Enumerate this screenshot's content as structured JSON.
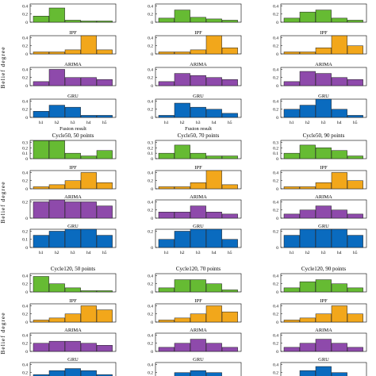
{
  "figure": {
    "ylabel": "Belief degree",
    "xlabel": "Fusion result",
    "categories": [
      "h1",
      "h2",
      "h3",
      "h4",
      "h5"
    ],
    "panel_titles": {
      "row2": [
        "Cycle50, 50 points",
        "Cycle50, 70 points",
        "Cycle50, 90 points"
      ],
      "row3": [
        "Cycle120, 50 points",
        "Cycle120, 70 points",
        "Cycle120, 90 points"
      ]
    },
    "colors": {
      "fusion": "#66bb33",
      "IPF": "#f2a71b",
      "ARIMA": "#8e4aab",
      "GRU": "#0a6bbf"
    }
  },
  "chart_data": [
    {
      "type": "bar",
      "title": "",
      "subplots": [
        {
          "name": "",
          "values": [
            0.15,
            0.35,
            0.05,
            0.03,
            0.03
          ],
          "yticks": [
            "0",
            "0.2",
            "0.4"
          ]
        },
        {
          "name": "IPF",
          "values": [
            0.05,
            0.05,
            0.1,
            0.45,
            0.1
          ],
          "yticks": [
            "0",
            "0.2",
            "0.4"
          ]
        },
        {
          "name": "ARIMA",
          "values": [
            0.1,
            0.4,
            0.2,
            0.2,
            0.15
          ],
          "yticks": [
            "0",
            "0.2",
            "0.4"
          ]
        },
        {
          "name": "GRU",
          "values": [
            0.15,
            0.3,
            0.25,
            0.05,
            0.05
          ],
          "yticks": [
            "0",
            "0.2",
            "0.4"
          ]
        }
      ],
      "xticks": [
        "h1",
        "h2",
        "h3",
        "h4",
        "h5"
      ],
      "xlabel": "Fusion result"
    },
    {
      "type": "bar",
      "title": "",
      "subplots": [
        {
          "name": "",
          "values": [
            0.1,
            0.3,
            0.12,
            0.08,
            0.05
          ],
          "yticks": [
            "0",
            "0.2",
            "0.4"
          ]
        },
        {
          "name": "IPF",
          "values": [
            0.05,
            0.05,
            0.1,
            0.45,
            0.15
          ],
          "yticks": [
            "0",
            "0.2",
            "0.4"
          ]
        },
        {
          "name": "ARIMA",
          "values": [
            0.1,
            0.3,
            0.25,
            0.2,
            0.15
          ],
          "yticks": [
            "0",
            "0.2",
            "0.4"
          ]
        },
        {
          "name": "GRU",
          "values": [
            0.05,
            0.35,
            0.25,
            0.2,
            0.1
          ],
          "yticks": [
            "0",
            "0.2",
            "0.4"
          ]
        }
      ],
      "xticks": [
        "h1",
        "h2",
        "h3",
        "h4",
        "h5"
      ],
      "xlabel": "Fusion result"
    },
    {
      "type": "bar",
      "title": "",
      "subplots": [
        {
          "name": "",
          "values": [
            0.1,
            0.25,
            0.3,
            0.1,
            0.05
          ],
          "yticks": [
            "0",
            "0.2",
            "0.4"
          ]
        },
        {
          "name": "IPF",
          "values": [
            0.05,
            0.05,
            0.15,
            0.45,
            0.2
          ],
          "yticks": [
            "0",
            "0.2",
            "0.4"
          ]
        },
        {
          "name": "ARIMA",
          "values": [
            0.1,
            0.35,
            0.3,
            0.2,
            0.15
          ],
          "yticks": [
            "0",
            "0.2",
            "0.4"
          ]
        },
        {
          "name": "GRU",
          "values": [
            0.2,
            0.3,
            0.45,
            0.2,
            0.05
          ],
          "yticks": [
            "0",
            "0.2",
            "0.4"
          ]
        }
      ],
      "xticks": [
        "h1",
        "h2",
        "h3",
        "h4",
        "h5"
      ],
      "xlabel": ""
    },
    {
      "type": "bar",
      "title": "Cycle50, 50 points",
      "subplots": [
        {
          "name": "",
          "values": [
            0.33,
            0.33,
            0.1,
            0.05,
            0.15
          ],
          "yticks": [
            "0",
            "0.1",
            "0.2",
            "0.3"
          ]
        },
        {
          "name": "IPF",
          "values": [
            0.05,
            0.1,
            0.2,
            0.4,
            0.15
          ],
          "yticks": [
            "0",
            "0.2",
            "0.4"
          ]
        },
        {
          "name": "ARIMA",
          "values": [
            0.2,
            0.25,
            0.2,
            0.2,
            0.15
          ],
          "yticks": [
            "0",
            "0.2"
          ]
        },
        {
          "name": "GRU",
          "values": [
            0.15,
            0.2,
            0.25,
            0.25,
            0.15
          ],
          "yticks": [
            "0",
            "0.1",
            "0.2"
          ]
        }
      ],
      "xticks": [
        "h1",
        "h2",
        "h3",
        "h4",
        "h5"
      ],
      "xlabel": ""
    },
    {
      "type": "bar",
      "title": "Cycle50, 70 points",
      "subplots": [
        {
          "name": "",
          "values": [
            0.1,
            0.25,
            0.1,
            0.05,
            0.05
          ],
          "yticks": [
            "0",
            "0.1",
            "0.2",
            "0.3"
          ]
        },
        {
          "name": "IPF",
          "values": [
            0.05,
            0.05,
            0.15,
            0.45,
            0.1
          ],
          "yticks": [
            "0",
            "0.2",
            "0.4"
          ]
        },
        {
          "name": "ARIMA",
          "values": [
            0.15,
            0.15,
            0.3,
            0.15,
            0.1
          ],
          "yticks": [
            "0",
            "0.2",
            "0.4"
          ]
        },
        {
          "name": "GRU",
          "values": [
            0.1,
            0.2,
            0.25,
            0.25,
            0.1
          ],
          "yticks": [
            "0",
            "0.2"
          ]
        }
      ],
      "xticks": [
        "h1",
        "h2",
        "h3",
        "h4",
        "h5"
      ],
      "xlabel": ""
    },
    {
      "type": "bar",
      "title": "Cycle50, 90 points",
      "subplots": [
        {
          "name": "",
          "values": [
            0.1,
            0.25,
            0.2,
            0.15,
            0.05
          ],
          "yticks": [
            "0",
            "0.1",
            "0.2",
            "0.3"
          ]
        },
        {
          "name": "IPF",
          "values": [
            0.05,
            0.05,
            0.15,
            0.4,
            0.2
          ],
          "yticks": [
            "0",
            "0.2",
            "0.4"
          ]
        },
        {
          "name": "ARIMA",
          "values": [
            0.1,
            0.2,
            0.3,
            0.2,
            0.1
          ],
          "yticks": [
            "0",
            "0.2",
            "0.4"
          ]
        },
        {
          "name": "GRU",
          "values": [
            0.15,
            0.25,
            0.25,
            0.25,
            0.15
          ],
          "yticks": [
            "0",
            "0.2"
          ]
        }
      ],
      "xticks": [
        "h1",
        "h2",
        "h3",
        "h4",
        "h5"
      ],
      "xlabel": ""
    },
    {
      "type": "bar",
      "title": "Cycle120, 50 points",
      "subplots": [
        {
          "name": "",
          "values": [
            0.38,
            0.2,
            0.1,
            0.03,
            0.03
          ],
          "yticks": [
            "0",
            "0.2",
            "0.4"
          ]
        },
        {
          "name": "IPF",
          "values": [
            0.05,
            0.1,
            0.2,
            0.4,
            0.3
          ],
          "yticks": [
            "0",
            "0.2",
            "0.4"
          ]
        },
        {
          "name": "ARIMA",
          "values": [
            0.2,
            0.25,
            0.25,
            0.2,
            0.15
          ],
          "yticks": [
            "0",
            "0.2",
            "0.4"
          ]
        },
        {
          "name": "GRU",
          "values": [
            0.15,
            0.25,
            0.3,
            0.25,
            0.15
          ],
          "yticks": [
            "0",
            "0.2",
            "0.4"
          ]
        }
      ],
      "xticks": [],
      "xlabel": ""
    },
    {
      "type": "bar",
      "title": "Cycle120, 70 points",
      "subplots": [
        {
          "name": "",
          "values": [
            0.1,
            0.3,
            0.3,
            0.2,
            0.05
          ],
          "yticks": [
            "0",
            "0.2",
            "0.4"
          ]
        },
        {
          "name": "IPF",
          "values": [
            0.05,
            0.1,
            0.2,
            0.4,
            0.25
          ],
          "yticks": [
            "0",
            "0.2",
            "0.4"
          ]
        },
        {
          "name": "ARIMA",
          "values": [
            0.1,
            0.2,
            0.3,
            0.2,
            0.1
          ],
          "yticks": [
            "0",
            "0.2",
            "0.4"
          ]
        },
        {
          "name": "GRU",
          "values": [
            0.1,
            0.2,
            0.25,
            0.2,
            0.1
          ],
          "yticks": [
            "0",
            "0.2",
            "0.4"
          ]
        }
      ],
      "xticks": [],
      "xlabel": ""
    },
    {
      "type": "bar",
      "title": "Cycle120, 90 points",
      "subplots": [
        {
          "name": "",
          "values": [
            0.1,
            0.25,
            0.3,
            0.2,
            0.1
          ],
          "yticks": [
            "0",
            "0.2",
            "0.4"
          ]
        },
        {
          "name": "IPF",
          "values": [
            0.05,
            0.1,
            0.2,
            0.4,
            0.2
          ],
          "yticks": [
            "0",
            "0.2",
            "0.4"
          ]
        },
        {
          "name": "ARIMA",
          "values": [
            0.1,
            0.2,
            0.3,
            0.2,
            0.1
          ],
          "yticks": [
            "0",
            "0.2",
            "0.4"
          ]
        },
        {
          "name": "GRU",
          "values": [
            0.1,
            0.25,
            0.35,
            0.2,
            0.1
          ],
          "yticks": [
            "0",
            "0.2",
            "0.4"
          ]
        }
      ],
      "xticks": [],
      "xlabel": ""
    }
  ]
}
